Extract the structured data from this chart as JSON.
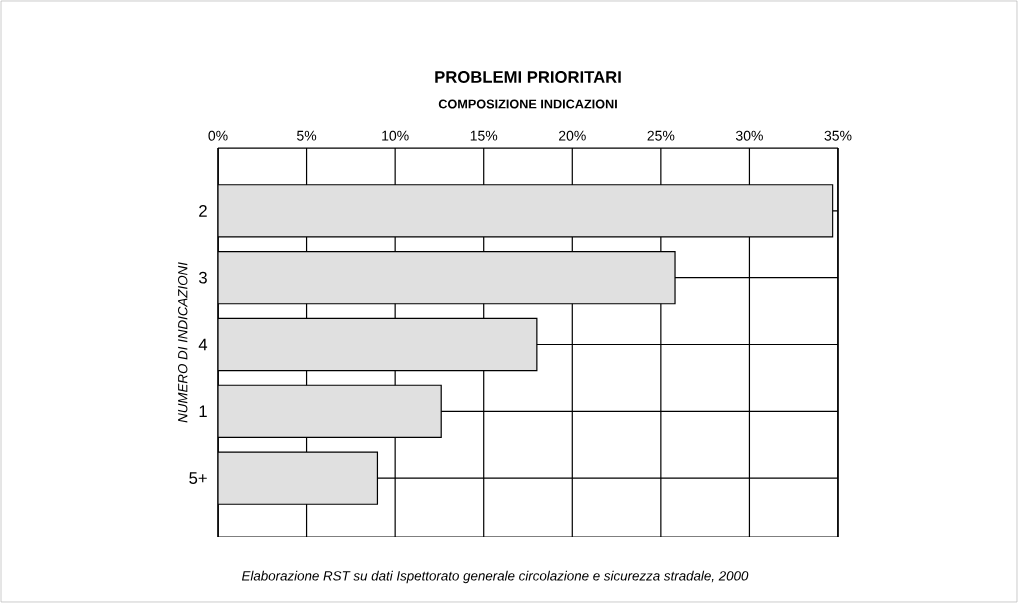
{
  "chart_data": {
    "type": "bar",
    "orientation": "horizontal",
    "title": "PROBLEMI PRIORITARI",
    "subtitle": "COMPOSIZIONE INDICAZIONI",
    "ylabel": "NUMERO DI INDICAZIONI",
    "categories": [
      "2",
      "3",
      "4",
      "1",
      "5+"
    ],
    "values": [
      34.7,
      25.8,
      18.0,
      12.6,
      9.0
    ],
    "color": "#e0e0e0",
    "xlim": [
      0,
      35
    ],
    "xticks": [
      {
        "value": 0,
        "label": "0%"
      },
      {
        "value": 5,
        "label": "5%"
      },
      {
        "value": 10,
        "label": "10%"
      },
      {
        "value": 15,
        "label": "15%"
      },
      {
        "value": 20,
        "label": "20%"
      },
      {
        "value": 25,
        "label": "25%"
      },
      {
        "value": 30,
        "label": "30%"
      },
      {
        "value": 35,
        "label": "35%"
      }
    ],
    "grid": true,
    "annotations": [
      "Elaborazione RST su dati Ispettorato generale circolazione e sicurezza stradale, 2000"
    ]
  }
}
